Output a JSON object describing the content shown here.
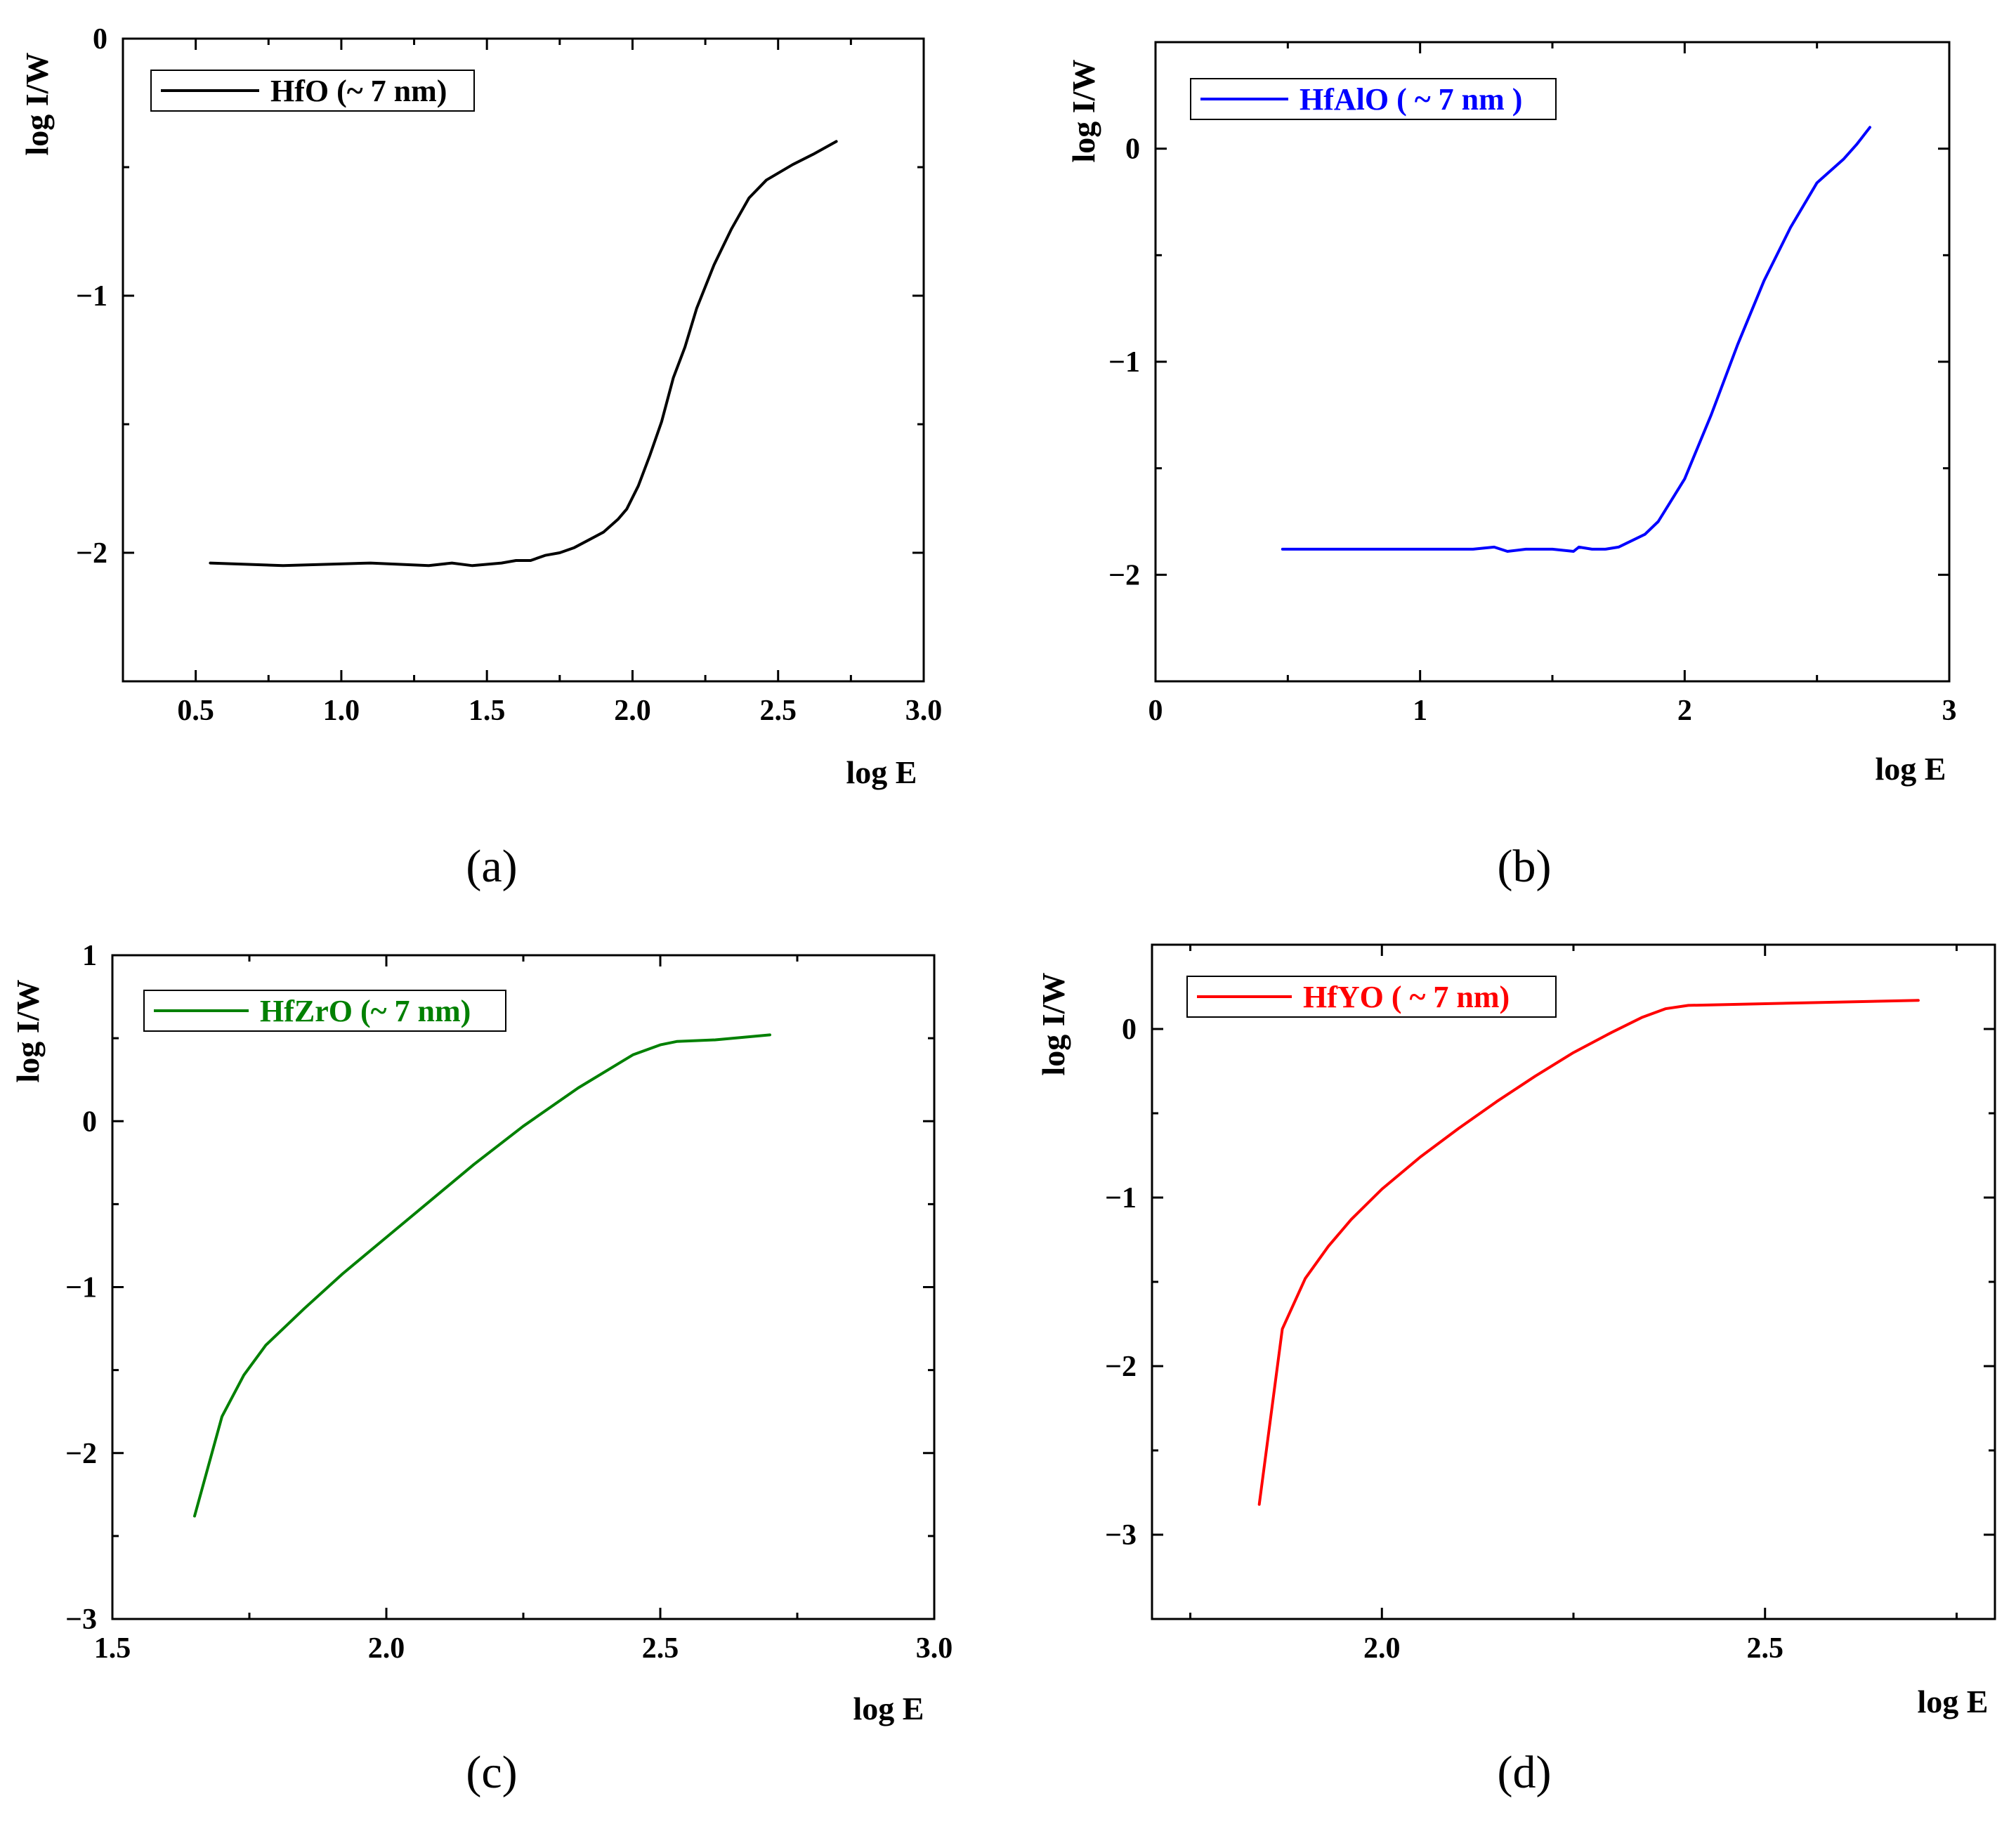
{
  "chart_data": [
    {
      "type": "line",
      "panel_label": "(a)",
      "xlabel": "log E",
      "ylabel": "log I/W",
      "xlim": [
        0.25,
        3.0
      ],
      "ylim": [
        -2.5,
        0
      ],
      "xticks": [
        0.5,
        1.0,
        1.5,
        2.0,
        2.5,
        3.0
      ],
      "xtick_labels": [
        "0.5",
        "1.0",
        "1.5",
        "2.0",
        "2.5",
        "3.0"
      ],
      "yticks": [
        0,
        -1,
        -2
      ],
      "ytick_labels": [
        "0",
        "−1",
        "−2"
      ],
      "legend_position": "top-left",
      "series": [
        {
          "name": "HfO (~ 7 nm)",
          "color": "#000000",
          "x": [
            0.55,
            0.8,
            1.1,
            1.3,
            1.38,
            1.45,
            1.55,
            1.6,
            1.65,
            1.7,
            1.75,
            1.8,
            1.85,
            1.9,
            1.95,
            1.98,
            2.02,
            2.06,
            2.1,
            2.14,
            2.18,
            2.22,
            2.28,
            2.34,
            2.4,
            2.46,
            2.55,
            2.62,
            2.7
          ],
          "y": [
            -2.04,
            -2.05,
            -2.04,
            -2.05,
            -2.04,
            -2.05,
            -2.04,
            -2.03,
            -2.03,
            -2.01,
            -2.0,
            -1.98,
            -1.95,
            -1.92,
            -1.87,
            -1.83,
            -1.74,
            -1.62,
            -1.49,
            -1.32,
            -1.2,
            -1.05,
            -0.88,
            -0.74,
            -0.62,
            -0.55,
            -0.49,
            -0.45,
            -0.4
          ]
        }
      ]
    },
    {
      "type": "line",
      "panel_label": "(b)",
      "xlabel": "log E",
      "ylabel": "log I/W",
      "xlim": [
        0,
        3
      ],
      "ylim": [
        -2.5,
        0.5
      ],
      "xticks": [
        0,
        1,
        2,
        3
      ],
      "xtick_labels": [
        "0",
        "1",
        "2",
        "3"
      ],
      "yticks": [
        0,
        -1,
        -2
      ],
      "ytick_labels": [
        "0",
        "−1",
        "−2"
      ],
      "legend_position": "top-left",
      "series": [
        {
          "name": "HfAlO ( ~ 7 nm )",
          "color": "#0000ff",
          "x": [
            0.48,
            0.8,
            1.1,
            1.2,
            1.28,
            1.33,
            1.4,
            1.5,
            1.58,
            1.6,
            1.65,
            1.7,
            1.75,
            1.8,
            1.85,
            1.9,
            1.95,
            2.0,
            2.1,
            2.2,
            2.3,
            2.4,
            2.5,
            2.6,
            2.65,
            2.7
          ],
          "y": [
            -1.88,
            -1.88,
            -1.88,
            -1.88,
            -1.87,
            -1.89,
            -1.88,
            -1.88,
            -1.89,
            -1.87,
            -1.88,
            -1.88,
            -1.87,
            -1.84,
            -1.81,
            -1.75,
            -1.65,
            -1.55,
            -1.25,
            -0.92,
            -0.62,
            -0.37,
            -0.16,
            -0.05,
            0.02,
            0.1
          ]
        }
      ]
    },
    {
      "type": "line",
      "panel_label": "(c)",
      "xlabel": "log E",
      "ylabel": "log I/W",
      "xlim": [
        1.5,
        3.0
      ],
      "ylim": [
        -3,
        1
      ],
      "xticks": [
        1.5,
        2.0,
        2.5,
        3.0
      ],
      "xtick_labels": [
        "1.5",
        "2.0",
        "2.5",
        "3.0"
      ],
      "yticks": [
        1,
        0,
        -1,
        -2,
        -3
      ],
      "ytick_labels": [
        "1",
        "0",
        "−1",
        "−2",
        "−3"
      ],
      "legend_position": "top-left",
      "series": [
        {
          "name": "HfZrO (~ 7 nm)",
          "color": "#008000",
          "x": [
            1.65,
            1.7,
            1.74,
            1.78,
            1.85,
            1.92,
            2.0,
            2.08,
            2.16,
            2.25,
            2.35,
            2.45,
            2.5,
            2.53,
            2.6,
            2.7
          ],
          "y": [
            -2.38,
            -1.78,
            -1.53,
            -1.35,
            -1.13,
            -0.92,
            -0.7,
            -0.48,
            -0.26,
            -0.03,
            0.2,
            0.4,
            0.46,
            0.48,
            0.49,
            0.52
          ]
        }
      ]
    },
    {
      "type": "line",
      "panel_label": "(d)",
      "xlabel": "log E",
      "ylabel": "log I/W",
      "xlim": [
        1.7,
        2.8
      ],
      "ylim": [
        -3.5,
        0.5
      ],
      "xticks": [
        2.0,
        2.5
      ],
      "xtick_labels": [
        "2.0",
        "2.5"
      ],
      "yticks": [
        0,
        -1,
        -2,
        -3
      ],
      "ytick_labels": [
        "0",
        "−1",
        "−2",
        "−3"
      ],
      "legend_position": "top-left",
      "series": [
        {
          "name": "HfYO ( ~ 7 nm)",
          "color": "#ff0000",
          "x": [
            1.84,
            1.87,
            1.9,
            1.93,
            1.96,
            2.0,
            2.05,
            2.1,
            2.15,
            2.2,
            2.25,
            2.3,
            2.34,
            2.37,
            2.4,
            2.5,
            2.6,
            2.7
          ],
          "y": [
            -2.82,
            -1.78,
            -1.48,
            -1.29,
            -1.13,
            -0.95,
            -0.76,
            -0.59,
            -0.43,
            -0.28,
            -0.14,
            -0.02,
            0.07,
            0.12,
            0.14,
            0.15,
            0.16,
            0.17
          ]
        }
      ]
    }
  ]
}
